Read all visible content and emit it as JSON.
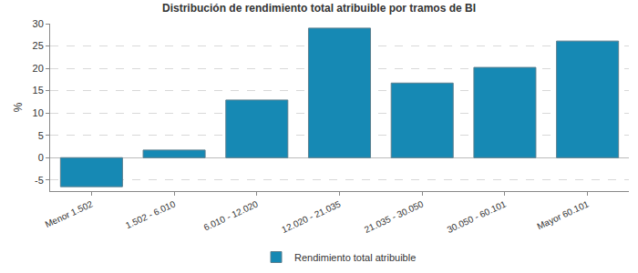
{
  "chart_data": {
    "type": "bar",
    "title": "Distribución de rendimiento total atribuible por tramos de BI",
    "y_label": "%",
    "categories": [
      "Menor 1.502",
      "1.502 - 6.010",
      "6.010 - 12.020",
      "12.020 - 21.035",
      "21.035 - 30.050",
      "30.050 - 60.101",
      "Mayor 60.101"
    ],
    "series": [
      {
        "name": "Rendimiento total atribuible",
        "color": "#1689b4",
        "values": [
          -6.5,
          1.7,
          12.9,
          29.0,
          16.7,
          20.2,
          26.1
        ]
      }
    ],
    "ylim": [
      -7.5,
      30
    ],
    "yticks": [
      -5,
      0,
      5,
      10,
      15,
      20,
      25,
      30
    ],
    "grid": true,
    "legend": "bottom"
  }
}
